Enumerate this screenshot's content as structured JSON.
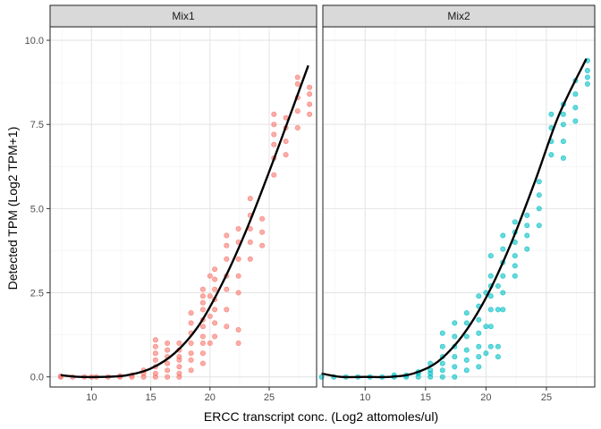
{
  "chart_data": {
    "type": "scatter",
    "xlabel": "ERCC transcript conc. (Log2 attomoles/ul)",
    "ylabel": "Detected TPM (Log2 TPM+1)",
    "xlim": [
      6.5,
      29
    ],
    "ylim": [
      -0.3,
      10.4
    ],
    "x_ticks": [
      10,
      15,
      20,
      25
    ],
    "y_ticks": [
      0.0,
      2.5,
      5.0,
      7.5,
      10.0
    ],
    "y_tick_labels": [
      "0.0",
      "2.5",
      "5.0",
      "7.5",
      "10.0"
    ],
    "grid": true,
    "legend": "none",
    "panels": [
      {
        "label": "Mix1",
        "color": "#F8766D",
        "points": [
          [
            7.4,
            0.0
          ],
          [
            7.4,
            0.02
          ],
          [
            8.4,
            0.0
          ],
          [
            9.4,
            0.0
          ],
          [
            10.0,
            0.0
          ],
          [
            10.4,
            0.0
          ],
          [
            11.4,
            0.0
          ],
          [
            12.4,
            0.0
          ],
          [
            12.4,
            0.03
          ],
          [
            13.4,
            0.0
          ],
          [
            13.4,
            0.05
          ],
          [
            14.4,
            0.0
          ],
          [
            14.4,
            0.1
          ],
          [
            14.4,
            0.2
          ],
          [
            15.4,
            0.0
          ],
          [
            15.4,
            0.1
          ],
          [
            15.4,
            0.3
          ],
          [
            15.4,
            0.5
          ],
          [
            15.4,
            0.7
          ],
          [
            15.4,
            0.9
          ],
          [
            15.4,
            1.1
          ],
          [
            16.4,
            0.0
          ],
          [
            16.4,
            0.2
          ],
          [
            16.4,
            0.4
          ],
          [
            16.4,
            0.6
          ],
          [
            16.4,
            0.8
          ],
          [
            16.4,
            1.0
          ],
          [
            17.4,
            0.0
          ],
          [
            17.4,
            0.1
          ],
          [
            17.4,
            0.3
          ],
          [
            17.4,
            0.5
          ],
          [
            17.4,
            0.6
          ],
          [
            17.4,
            0.8
          ],
          [
            17.4,
            1.0
          ],
          [
            18.4,
            0.2
          ],
          [
            18.4,
            0.5
          ],
          [
            18.4,
            0.7
          ],
          [
            18.4,
            1.0
          ],
          [
            18.4,
            1.3
          ],
          [
            18.4,
            1.6
          ],
          [
            18.4,
            1.9
          ],
          [
            19.4,
            0.4
          ],
          [
            19.4,
            0.7
          ],
          [
            19.4,
            1.0
          ],
          [
            19.4,
            1.2
          ],
          [
            19.4,
            1.5
          ],
          [
            19.4,
            1.7
          ],
          [
            19.4,
            2.0
          ],
          [
            19.4,
            2.2
          ],
          [
            19.4,
            2.4
          ],
          [
            19.4,
            2.6
          ],
          [
            20.0,
            1.0
          ],
          [
            20.0,
            1.8
          ],
          [
            20.0,
            2.4
          ],
          [
            20.0,
            3.0
          ],
          [
            20.4,
            1.2
          ],
          [
            20.4,
            1.6
          ],
          [
            20.4,
            2.0
          ],
          [
            20.4,
            2.3
          ],
          [
            20.4,
            2.6
          ],
          [
            20.4,
            2.9
          ],
          [
            20.4,
            3.2
          ],
          [
            21.4,
            1.5
          ],
          [
            21.4,
            2.0
          ],
          [
            21.4,
            2.6
          ],
          [
            21.4,
            3.0
          ],
          [
            21.4,
            3.5
          ],
          [
            21.4,
            3.9
          ],
          [
            21.4,
            4.2
          ],
          [
            22.4,
            1.0
          ],
          [
            22.4,
            1.4
          ],
          [
            22.4,
            2.5
          ],
          [
            22.4,
            3.0
          ],
          [
            22.4,
            3.5
          ],
          [
            22.4,
            4.0
          ],
          [
            22.4,
            4.4
          ],
          [
            23.4,
            3.5
          ],
          [
            23.4,
            4.0
          ],
          [
            23.4,
            4.4
          ],
          [
            23.4,
            4.8
          ],
          [
            23.4,
            5.3
          ],
          [
            24.4,
            3.9
          ],
          [
            24.4,
            4.3
          ],
          [
            24.4,
            4.7
          ],
          [
            25.4,
            6.0
          ],
          [
            25.4,
            6.5
          ],
          [
            25.4,
            6.9
          ],
          [
            25.4,
            7.2
          ],
          [
            25.4,
            7.5
          ],
          [
            25.4,
            7.8
          ],
          [
            26.4,
            6.6
          ],
          [
            26.4,
            7.0
          ],
          [
            26.4,
            7.4
          ],
          [
            26.4,
            7.7
          ],
          [
            27.4,
            7.4
          ],
          [
            27.4,
            7.9
          ],
          [
            27.4,
            8.3
          ],
          [
            27.4,
            8.7
          ],
          [
            27.4,
            8.9
          ],
          [
            28.4,
            7.8
          ],
          [
            28.4,
            8.1
          ],
          [
            28.4,
            8.4
          ],
          [
            28.4,
            8.6
          ]
        ],
        "fit": [
          [
            7.4,
            0.05
          ],
          [
            9,
            0.0
          ],
          [
            11,
            0.0
          ],
          [
            13,
            0.05
          ],
          [
            15,
            0.25
          ],
          [
            17,
            0.7
          ],
          [
            19,
            1.5
          ],
          [
            21,
            2.75
          ],
          [
            23,
            4.3
          ],
          [
            25,
            6.1
          ],
          [
            27,
            8.0
          ],
          [
            28.3,
            9.25
          ]
        ]
      },
      {
        "label": "Mix2",
        "color": "#00BFC4",
        "points": [
          [
            6.4,
            0.0
          ],
          [
            7.4,
            0.0
          ],
          [
            8.4,
            0.0
          ],
          [
            9.4,
            0.0
          ],
          [
            10.4,
            0.0
          ],
          [
            11.4,
            0.0
          ],
          [
            12.4,
            0.0
          ],
          [
            12.4,
            0.05
          ],
          [
            13.4,
            0.0
          ],
          [
            13.4,
            0.05
          ],
          [
            14.4,
            0.0
          ],
          [
            14.4,
            0.1
          ],
          [
            14.4,
            0.15
          ],
          [
            15.4,
            0.0
          ],
          [
            15.4,
            0.1
          ],
          [
            15.4,
            0.2
          ],
          [
            15.4,
            0.4
          ],
          [
            16.4,
            0.0
          ],
          [
            16.4,
            0.2
          ],
          [
            16.4,
            0.4
          ],
          [
            16.4,
            0.6
          ],
          [
            16.4,
            0.9
          ],
          [
            16.4,
            1.3
          ],
          [
            17.4,
            0.0
          ],
          [
            17.4,
            0.3
          ],
          [
            17.4,
            0.6
          ],
          [
            17.4,
            0.9
          ],
          [
            17.4,
            1.2
          ],
          [
            17.4,
            1.6
          ],
          [
            18.4,
            0.2
          ],
          [
            18.4,
            0.5
          ],
          [
            18.4,
            0.8
          ],
          [
            18.4,
            1.2
          ],
          [
            18.4,
            1.6
          ],
          [
            18.4,
            1.9
          ],
          [
            19.4,
            0.3
          ],
          [
            19.4,
            0.6
          ],
          [
            19.4,
            0.9
          ],
          [
            19.4,
            1.3
          ],
          [
            19.4,
            1.7
          ],
          [
            19.4,
            2.1
          ],
          [
            19.4,
            2.4
          ],
          [
            20.0,
            0.7
          ],
          [
            20.0,
            1.5
          ],
          [
            20.0,
            2.5
          ],
          [
            20.4,
            0.9
          ],
          [
            20.4,
            1.5
          ],
          [
            20.4,
            2.0
          ],
          [
            20.4,
            2.4
          ],
          [
            20.4,
            2.7
          ],
          [
            20.4,
            3.0
          ],
          [
            20.4,
            3.6
          ],
          [
            21.0,
            0.6
          ],
          [
            21.0,
            0.9
          ],
          [
            21.0,
            2.0
          ],
          [
            21.0,
            2.7
          ],
          [
            21.4,
            2.0
          ],
          [
            21.4,
            2.5
          ],
          [
            21.4,
            3.0
          ],
          [
            21.4,
            3.4
          ],
          [
            21.4,
            3.8
          ],
          [
            21.4,
            4.2
          ],
          [
            22.4,
            3.0
          ],
          [
            22.4,
            3.3
          ],
          [
            22.4,
            3.6
          ],
          [
            22.4,
            4.0
          ],
          [
            22.4,
            4.3
          ],
          [
            22.4,
            4.6
          ],
          [
            23.4,
            3.8
          ],
          [
            23.4,
            4.2
          ],
          [
            23.4,
            4.5
          ],
          [
            23.4,
            4.8
          ],
          [
            24.4,
            4.5
          ],
          [
            24.4,
            5.0
          ],
          [
            24.4,
            5.4
          ],
          [
            24.4,
            5.8
          ],
          [
            25.4,
            6.6
          ],
          [
            25.4,
            7.0
          ],
          [
            25.4,
            7.4
          ],
          [
            25.4,
            7.8
          ],
          [
            26.4,
            6.5
          ],
          [
            26.4,
            7.0
          ],
          [
            26.4,
            7.5
          ],
          [
            26.4,
            7.8
          ],
          [
            26.4,
            8.1
          ],
          [
            27.4,
            7.6
          ],
          [
            27.4,
            8.0
          ],
          [
            27.4,
            8.4
          ],
          [
            27.4,
            8.8
          ],
          [
            28.4,
            8.7
          ],
          [
            28.4,
            8.9
          ],
          [
            28.4,
            9.1
          ],
          [
            28.4,
            9.4
          ]
        ],
        "fit": [
          [
            6.4,
            0.1
          ],
          [
            8,
            0.0
          ],
          [
            10,
            0.0
          ],
          [
            12,
            0.0
          ],
          [
            14,
            0.1
          ],
          [
            16,
            0.45
          ],
          [
            18,
            1.2
          ],
          [
            20,
            2.35
          ],
          [
            22,
            3.9
          ],
          [
            24,
            5.75
          ],
          [
            26,
            7.75
          ],
          [
            28.3,
            9.45
          ]
        ]
      }
    ]
  }
}
